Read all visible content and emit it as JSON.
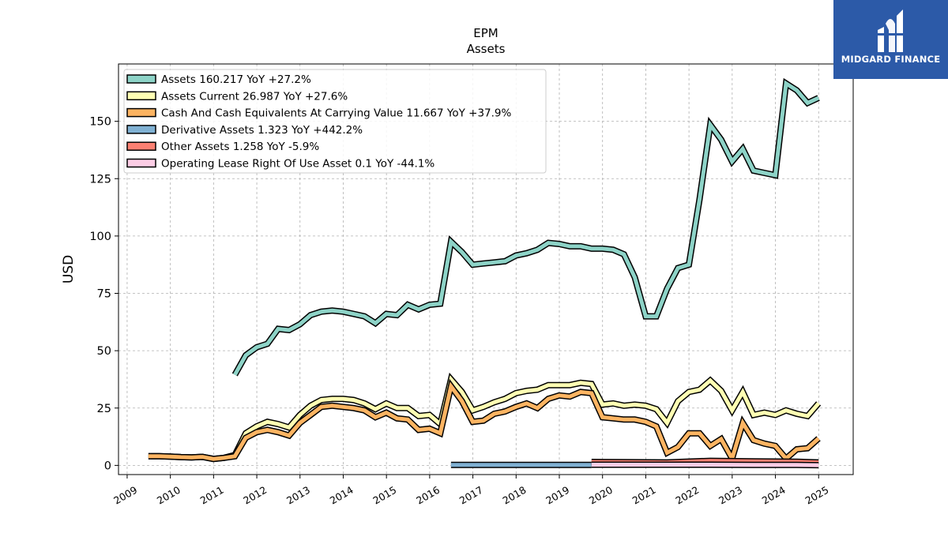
{
  "chart_data": {
    "type": "line",
    "title": "EPM",
    "subtitle": "Assets",
    "ylabel": "USD",
    "xlabel": "",
    "ylim": [
      -4,
      175
    ],
    "xlim": [
      2008.8,
      2025.8
    ],
    "yticks": [
      0,
      25,
      50,
      75,
      100,
      125,
      150
    ],
    "xticks": [
      "2009",
      "2010",
      "2011",
      "2012",
      "2013",
      "2014",
      "2015",
      "2016",
      "2017",
      "2018",
      "2019",
      "2020",
      "2021",
      "2022",
      "2023",
      "2024",
      "2025"
    ],
    "grid": true,
    "legend_position": "top-left",
    "series": [
      {
        "name": "Assets  160.217 YoY +27.2%",
        "color": "#8dd3c7",
        "points": [
          [
            "2011-06-30",
            39.5
          ],
          [
            "2011-09-30",
            48
          ],
          [
            "2011-12-31",
            51.5
          ],
          [
            "2012-03-31",
            53
          ],
          [
            "2012-06-30",
            59.5
          ],
          [
            "2012-09-30",
            59
          ],
          [
            "2012-12-31",
            61.5
          ],
          [
            "2013-03-31",
            65.5
          ],
          [
            "2013-06-30",
            67
          ],
          [
            "2013-09-30",
            67.5
          ],
          [
            "2013-12-31",
            67
          ],
          [
            "2014-03-31",
            66
          ],
          [
            "2014-06-30",
            65
          ],
          [
            "2014-09-30",
            62
          ],
          [
            "2014-12-31",
            66
          ],
          [
            "2015-03-31",
            65.5
          ],
          [
            "2015-06-30",
            70
          ],
          [
            "2015-09-30",
            68
          ],
          [
            "2015-12-31",
            70
          ],
          [
            "2016-03-31",
            70.5
          ],
          [
            "2016-06-30",
            97.5
          ],
          [
            "2016-09-30",
            93
          ],
          [
            "2016-12-31",
            87.5
          ],
          [
            "2017-03-31",
            88
          ],
          [
            "2017-06-30",
            88.5
          ],
          [
            "2017-09-30",
            89
          ],
          [
            "2017-12-31",
            91.5
          ],
          [
            "2018-03-31",
            92.5
          ],
          [
            "2018-06-30",
            94
          ],
          [
            "2018-09-30",
            97
          ],
          [
            "2018-12-31",
            96.5
          ],
          [
            "2019-03-31",
            95.5
          ],
          [
            "2019-06-30",
            95.5
          ],
          [
            "2019-09-30",
            94.5
          ],
          [
            "2019-12-31",
            94.5
          ],
          [
            "2020-03-31",
            94
          ],
          [
            "2020-06-30",
            92
          ],
          [
            "2020-09-30",
            82
          ],
          [
            "2020-12-31",
            65
          ],
          [
            "2021-03-31",
            65
          ],
          [
            "2021-06-30",
            77
          ],
          [
            "2021-09-30",
            86
          ],
          [
            "2021-12-31",
            87.5
          ],
          [
            "2022-03-31",
            116
          ],
          [
            "2022-06-30",
            148.5
          ],
          [
            "2022-09-30",
            142
          ],
          [
            "2022-12-31",
            132.5
          ],
          [
            "2023-03-31",
            138
          ],
          [
            "2023-06-30",
            128.5
          ],
          [
            "2023-09-30",
            127.5
          ],
          [
            "2023-12-31",
            126.5
          ],
          [
            "2024-03-31",
            166.5
          ],
          [
            "2024-06-30",
            163.5
          ],
          [
            "2024-09-30",
            158
          ],
          [
            "2024-12-31",
            160.2
          ]
        ]
      },
      {
        "name": "Assets Current  26.987 YoY +27.6%",
        "color": "#ffffb3",
        "points": [
          [
            "2009-06-30",
            4
          ],
          [
            "2009-09-30",
            4
          ],
          [
            "2009-12-31",
            3.8
          ],
          [
            "2010-03-31",
            3.6
          ],
          [
            "2010-06-30",
            3.5
          ],
          [
            "2010-09-30",
            3.7
          ],
          [
            "2010-12-31",
            2.8
          ],
          [
            "2011-03-31",
            3.3
          ],
          [
            "2011-06-30",
            4.5
          ],
          [
            "2011-09-30",
            14
          ],
          [
            "2011-12-31",
            17
          ],
          [
            "2012-03-31",
            19
          ],
          [
            "2012-06-30",
            18
          ],
          [
            "2012-09-30",
            16.5
          ],
          [
            "2012-12-31",
            22
          ],
          [
            "2013-03-31",
            26
          ],
          [
            "2013-06-30",
            28.5
          ],
          [
            "2013-09-30",
            29
          ],
          [
            "2013-12-31",
            29
          ],
          [
            "2014-03-31",
            28.5
          ],
          [
            "2014-06-30",
            27
          ],
          [
            "2014-09-30",
            24.5
          ],
          [
            "2014-12-31",
            27
          ],
          [
            "2015-03-31",
            25
          ],
          [
            "2015-06-30",
            25
          ],
          [
            "2015-09-30",
            21.5
          ],
          [
            "2015-12-31",
            22
          ],
          [
            "2016-03-31",
            18
          ],
          [
            "2016-06-30",
            37.5
          ],
          [
            "2016-09-30",
            32
          ],
          [
            "2016-12-31",
            24
          ],
          [
            "2017-03-31",
            25.5
          ],
          [
            "2017-06-30",
            27.5
          ],
          [
            "2017-09-30",
            29
          ],
          [
            "2017-12-31",
            31.5
          ],
          [
            "2018-03-31",
            32.5
          ],
          [
            "2018-06-30",
            33
          ],
          [
            "2018-09-30",
            35
          ],
          [
            "2018-12-31",
            35
          ],
          [
            "2019-03-31",
            35
          ],
          [
            "2019-06-30",
            36
          ],
          [
            "2019-09-30",
            35.5
          ],
          [
            "2019-12-31",
            26.5
          ],
          [
            "2020-03-31",
            27
          ],
          [
            "2020-06-30",
            26
          ],
          [
            "2020-09-30",
            26.5
          ],
          [
            "2020-12-31",
            26
          ],
          [
            "2021-03-31",
            24.5
          ],
          [
            "2021-06-30",
            18.5
          ],
          [
            "2021-09-30",
            28
          ],
          [
            "2021-12-31",
            32
          ],
          [
            "2022-03-31",
            33
          ],
          [
            "2022-06-30",
            37
          ],
          [
            "2022-09-30",
            32.5
          ],
          [
            "2022-12-31",
            24
          ],
          [
            "2023-03-31",
            32
          ],
          [
            "2023-06-30",
            22
          ],
          [
            "2023-09-30",
            23
          ],
          [
            "2023-12-31",
            22
          ],
          [
            "2024-03-31",
            24
          ],
          [
            "2024-06-30",
            22.5
          ],
          [
            "2024-09-30",
            21.5
          ],
          [
            "2024-12-31",
            27
          ]
        ]
      },
      {
        "name": "Cash And Cash Equivalents At Carrying Value  11.667 YoY +37.9%",
        "color": "#fdb462",
        "points": [
          [
            "2009-06-30",
            4
          ],
          [
            "2009-09-30",
            4
          ],
          [
            "2009-12-31",
            3.8
          ],
          [
            "2010-03-31",
            3.6
          ],
          [
            "2010-06-30",
            3.5
          ],
          [
            "2010-09-30",
            3.7
          ],
          [
            "2010-12-31",
            2.8
          ],
          [
            "2011-03-31",
            3.3
          ],
          [
            "2011-06-30",
            4
          ],
          [
            "2011-09-30",
            12
          ],
          [
            "2011-12-31",
            14.5
          ],
          [
            "2012-03-31",
            15.5
          ],
          [
            "2012-06-30",
            14.5
          ],
          [
            "2012-09-30",
            13
          ],
          [
            "2012-12-31",
            18.5
          ],
          [
            "2013-03-31",
            22
          ],
          [
            "2013-06-30",
            25.5
          ],
          [
            "2013-09-30",
            26
          ],
          [
            "2013-12-31",
            25.5
          ],
          [
            "2014-03-31",
            25
          ],
          [
            "2014-06-30",
            24
          ],
          [
            "2014-09-30",
            21
          ],
          [
            "2014-12-31",
            23
          ],
          [
            "2015-03-31",
            20.5
          ],
          [
            "2015-06-30",
            20
          ],
          [
            "2015-09-30",
            15.5
          ],
          [
            "2015-12-31",
            16
          ],
          [
            "2016-03-31",
            14
          ],
          [
            "2016-06-30",
            34.5
          ],
          [
            "2016-09-30",
            28
          ],
          [
            "2016-12-31",
            19
          ],
          [
            "2017-03-31",
            19.5
          ],
          [
            "2017-06-30",
            22.5
          ],
          [
            "2017-09-30",
            23.5
          ],
          [
            "2017-12-31",
            25.5
          ],
          [
            "2018-03-31",
            27
          ],
          [
            "2018-06-30",
            25
          ],
          [
            "2018-09-30",
            29
          ],
          [
            "2018-12-31",
            30.5
          ],
          [
            "2019-03-31",
            30
          ],
          [
            "2019-06-30",
            32
          ],
          [
            "2019-09-30",
            31.5
          ],
          [
            "2019-12-31",
            21
          ],
          [
            "2020-03-31",
            20.5
          ],
          [
            "2020-06-30",
            20
          ],
          [
            "2020-09-30",
            20
          ],
          [
            "2020-12-31",
            19
          ],
          [
            "2021-03-31",
            17
          ],
          [
            "2021-06-30",
            5.5
          ],
          [
            "2021-09-30",
            8
          ],
          [
            "2021-12-31",
            14
          ],
          [
            "2022-03-31",
            14
          ],
          [
            "2022-06-30",
            8.5
          ],
          [
            "2022-09-30",
            11.5
          ],
          [
            "2022-12-31",
            3
          ],
          [
            "2023-03-31",
            18.5
          ],
          [
            "2023-06-30",
            11
          ],
          [
            "2023-09-30",
            9.5
          ],
          [
            "2023-12-31",
            8.5
          ],
          [
            "2024-03-31",
            3
          ],
          [
            "2024-06-30",
            7
          ],
          [
            "2024-09-30",
            7.5
          ],
          [
            "2024-12-31",
            11.7
          ]
        ]
      },
      {
        "name": "Derivative Assets  1.323 YoY +442.2%",
        "color": "#80b1d3",
        "points": [
          [
            "2016-06-30",
            0.2
          ],
          [
            "2016-12-31",
            0.2
          ],
          [
            "2017-06-30",
            0.2
          ],
          [
            "2017-12-31",
            0.2
          ],
          [
            "2018-06-30",
            0.2
          ],
          [
            "2018-12-31",
            0.2
          ],
          [
            "2019-06-30",
            0.2
          ],
          [
            "2019-09-30",
            0.2
          ]
        ]
      },
      {
        "name": "Other Assets  1.258 YoY -5.9%",
        "color": "#fb8072",
        "points": [
          [
            "2019-09-30",
            1.5
          ],
          [
            "2020-06-30",
            1.4
          ],
          [
            "2021-06-30",
            1.3
          ],
          [
            "2022-06-30",
            2
          ],
          [
            "2023-06-30",
            1.8
          ],
          [
            "2024-06-30",
            1.6
          ],
          [
            "2024-12-31",
            1.3
          ]
        ]
      },
      {
        "name": "Operating Lease Right Of Use Asset  0.1 YoY -44.1%",
        "color": "#fccde5",
        "points": [
          [
            "2019-09-30",
            0.3
          ],
          [
            "2020-06-30",
            0.3
          ],
          [
            "2021-06-30",
            0.3
          ],
          [
            "2022-06-30",
            0.3
          ],
          [
            "2023-06-30",
            0.2
          ],
          [
            "2024-06-30",
            0.2
          ],
          [
            "2024-12-31",
            0.1
          ]
        ]
      }
    ]
  },
  "logo": {
    "text": "MIDGARD FINANCE",
    "background": "#2c5aa8"
  }
}
